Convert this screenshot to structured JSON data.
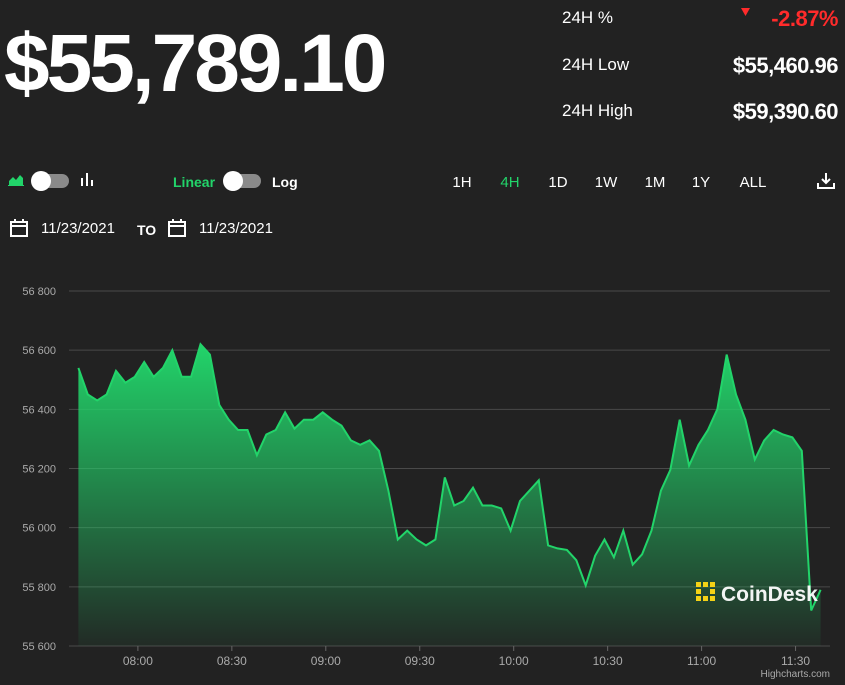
{
  "header": {
    "price": "$55,789.10",
    "stats": [
      {
        "label": "24H %",
        "value": "-2.87%"
      },
      {
        "label": "24H Low",
        "value": "$55,460.96"
      },
      {
        "label": "24H High",
        "value": "$59,390.60"
      }
    ]
  },
  "controls": {
    "linear": "Linear",
    "log": "Log",
    "ranges": [
      "1H",
      "4H",
      "1D",
      "1W",
      "1M",
      "1Y",
      "ALL"
    ],
    "active_range": "4H",
    "date_from": "11/23/2021",
    "to": "TO",
    "date_to": "11/23/2021"
  },
  "chart_data": {
    "type": "area",
    "color": "#22d46a",
    "grid": true,
    "watermark": "CoinDesk",
    "credit": "Highcharts.com",
    "x": [
      "07:41",
      "07:44",
      "07:47",
      "07:50",
      "07:53",
      "07:56",
      "07:59",
      "08:02",
      "08:05",
      "08:08",
      "08:11",
      "08:14",
      "08:17",
      "08:20",
      "08:23",
      "08:26",
      "08:29",
      "08:32",
      "08:35",
      "08:38",
      "08:41",
      "08:44",
      "08:47",
      "08:50",
      "08:53",
      "08:56",
      "08:59",
      "09:02",
      "09:05",
      "09:08",
      "09:11",
      "09:14",
      "09:17",
      "09:20",
      "09:23",
      "09:26",
      "09:29",
      "09:32",
      "09:35",
      "09:38",
      "09:41",
      "09:44",
      "09:47",
      "09:50",
      "09:53",
      "09:56",
      "09:59",
      "10:02",
      "10:05",
      "10:08",
      "10:11",
      "10:14",
      "10:17",
      "10:20",
      "10:23",
      "10:26",
      "10:29",
      "10:32",
      "10:35",
      "10:38",
      "10:41",
      "10:44",
      "10:47",
      "10:50",
      "10:53",
      "10:56",
      "10:59",
      "11:02",
      "11:05",
      "11:08",
      "11:11",
      "11:14",
      "11:17",
      "11:20",
      "11:23",
      "11:26",
      "11:29",
      "11:32",
      "11:35",
      "11:38"
    ],
    "values": [
      56540,
      56450,
      56430,
      56450,
      56530,
      56490,
      56510,
      56560,
      56510,
      56540,
      56600,
      56510,
      56510,
      56620,
      56585,
      56415,
      56365,
      56330,
      56330,
      56245,
      56315,
      56330,
      56390,
      56335,
      56365,
      56365,
      56390,
      56365,
      56345,
      56295,
      56280,
      56295,
      56260,
      56125,
      55960,
      55990,
      55960,
      55940,
      55960,
      56170,
      56075,
      56090,
      56135,
      56075,
      56075,
      56065,
      55990,
      56090,
      56125,
      56160,
      55940,
      55930,
      55925,
      55890,
      55805,
      55905,
      55960,
      55900,
      55990,
      55875,
      55910,
      55990,
      56125,
      56195,
      56365,
      56210,
      56280,
      56330,
      56400,
      56585,
      56450,
      56365,
      56230,
      56295,
      56330,
      56315,
      56305,
      56260,
      55720,
      55790
    ],
    "xlim": [
      "07:38",
      "11:41"
    ],
    "xticks": [
      "08:00",
      "08:30",
      "09:00",
      "09:30",
      "10:00",
      "10:30",
      "11:00",
      "11:30"
    ],
    "ylim": [
      55600,
      56800
    ],
    "yticks": [
      {
        "value": 55600,
        "label": "55 600"
      },
      {
        "value": 55800,
        "label": "55 800"
      },
      {
        "value": 56000,
        "label": "56 000"
      },
      {
        "value": 56200,
        "label": "56 200"
      },
      {
        "value": 56400,
        "label": "56 400"
      },
      {
        "value": 56600,
        "label": "56 600"
      },
      {
        "value": 56800,
        "label": "56 800"
      }
    ]
  }
}
